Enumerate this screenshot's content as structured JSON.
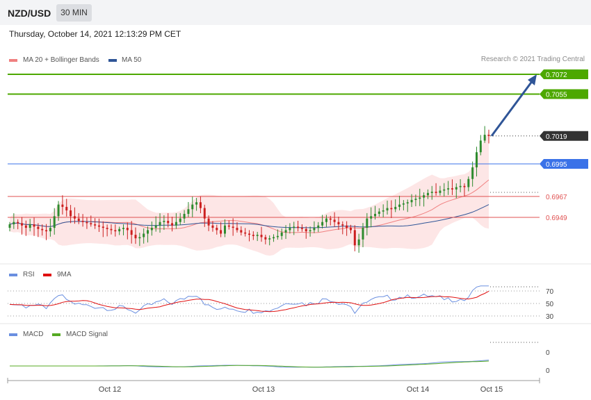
{
  "header": {
    "symbol": "NZD/USD",
    "timeframe": "30 MIN"
  },
  "timestamp": "Thursday, October 14, 2021 12:13:29 PM CET",
  "credit": "Research © 2021 Trading Central",
  "colors": {
    "ma20": "#f08080",
    "ma50": "#2f5597",
    "band_fill": "#fde3e3",
    "bull": "#2e8b2e",
    "bear": "#cc1f1f",
    "resistance": "#4da800",
    "support_blue": "#3a72e8",
    "support_red": "#e05050",
    "current": "#333333",
    "rsi": "#6a8fe0",
    "rsi_ma": "#e01010",
    "macd": "#6a8fe0",
    "macd_signal": "#55aa22",
    "arrow": "#2f5597"
  },
  "price_panel": {
    "legend": [
      {
        "label": "MA 20 + Bollinger Bands",
        "color": "#f08080"
      },
      {
        "label": "MA 50",
        "color": "#2f5597"
      }
    ],
    "levels": [
      {
        "label": "0.7072",
        "value": 0.7072,
        "kind": "resistance"
      },
      {
        "label": "0.7055",
        "value": 0.7055,
        "kind": "resistance"
      },
      {
        "label": "0.7019",
        "value": 0.7019,
        "kind": "current"
      },
      {
        "label": "0.6995",
        "value": 0.6995,
        "kind": "support_blue"
      },
      {
        "label": "0.6967",
        "value": 0.6967,
        "kind": "support_red"
      },
      {
        "label": "0.6949",
        "value": 0.6949,
        "kind": "support_red"
      }
    ]
  },
  "rsi_panel": {
    "legend": [
      {
        "label": "RSI",
        "color": "#6a8fe0"
      },
      {
        "label": "9MA",
        "color": "#e01010"
      }
    ],
    "levels": [
      "70",
      "50",
      "30"
    ]
  },
  "macd_panel": {
    "legend": [
      {
        "label": "MACD",
        "color": "#6a8fe0"
      },
      {
        "label": "MACD Signal",
        "color": "#55aa22"
      }
    ],
    "levels": [
      "0",
      "0"
    ]
  },
  "x_axis": {
    "labels": [
      "Oct 12",
      "Oct 13",
      "Oct 14",
      "Oct 15"
    ]
  },
  "chart_data": {
    "type": "candlestick",
    "title": "NZD/USD",
    "timeframe": "30 MIN",
    "x": [
      "Oct 12",
      "Oct 13",
      "Oct 14",
      "Oct 15"
    ],
    "price_levels": [
      0.7072,
      0.7055,
      0.7019,
      0.6995,
      0.6967,
      0.6949
    ],
    "current_price": 0.7019,
    "candles_close": [
      0.6943,
      0.6945,
      0.6944,
      0.6942,
      0.694,
      0.6943,
      0.6941,
      0.6939,
      0.6938,
      0.6937,
      0.694,
      0.695,
      0.696,
      0.6958,
      0.6955,
      0.695,
      0.6948,
      0.6946,
      0.6945,
      0.6944,
      0.6943,
      0.6942,
      0.6941,
      0.694,
      0.6939,
      0.6938,
      0.6937,
      0.6939,
      0.694,
      0.6938,
      0.6934,
      0.6931,
      0.6932,
      0.6935,
      0.6938,
      0.694,
      0.6942,
      0.6945,
      0.6946,
      0.6944,
      0.6942,
      0.6945,
      0.6948,
      0.6952,
      0.6956,
      0.696,
      0.6962,
      0.6957,
      0.6948,
      0.6942,
      0.694,
      0.6938,
      0.6935,
      0.6942,
      0.6941,
      0.694,
      0.6938,
      0.6936,
      0.6935,
      0.6934,
      0.6933,
      0.6934,
      0.6932,
      0.693,
      0.6931,
      0.6932,
      0.6933,
      0.6936,
      0.6938,
      0.694,
      0.6941,
      0.694,
      0.6939,
      0.6937,
      0.6938,
      0.694,
      0.6942,
      0.6945,
      0.6948,
      0.6947,
      0.6945,
      0.6943,
      0.6942,
      0.694,
      0.6938,
      0.6925,
      0.693,
      0.694,
      0.6948,
      0.695,
      0.6952,
      0.6954,
      0.6955,
      0.6957,
      0.6956,
      0.6958,
      0.696,
      0.6961,
      0.6962,
      0.6964,
      0.6965,
      0.6966,
      0.6968,
      0.697,
      0.6971,
      0.697,
      0.6972,
      0.6973,
      0.6974,
      0.6973,
      0.6975,
      0.6976,
      0.6975,
      0.6982,
      0.6992,
      0.7005,
      0.7015,
      0.702,
      0.7019
    ],
    "rsi": {
      "levels": [
        70,
        50,
        30
      ]
    },
    "macd": {
      "levels": [
        0,
        0
      ]
    },
    "projection": {
      "from": 0.7019,
      "to": 0.7072
    }
  }
}
